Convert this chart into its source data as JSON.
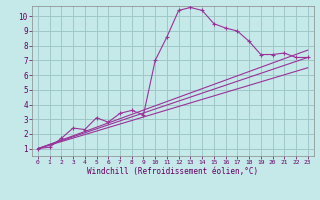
{
  "background_color": "#c5e8e8",
  "grid_color": "#a0c8c8",
  "line_color": "#993399",
  "xlabel": "Windchill (Refroidissement éolien,°C)",
  "ylim": [
    0.5,
    10.7
  ],
  "xlim": [
    -0.5,
    23.5
  ],
  "yticks": [
    1,
    2,
    3,
    4,
    5,
    6,
    7,
    8,
    9,
    10
  ],
  "xticks": [
    0,
    1,
    2,
    3,
    4,
    5,
    6,
    7,
    8,
    9,
    10,
    11,
    12,
    13,
    14,
    15,
    16,
    17,
    18,
    19,
    20,
    21,
    22,
    23
  ],
  "line1_x": [
    0,
    1,
    2,
    3,
    4,
    5,
    6,
    7,
    8,
    9,
    10,
    11,
    12,
    13,
    14,
    15,
    16,
    17,
    18,
    19,
    20,
    21,
    22,
    23
  ],
  "line1_y": [
    1.0,
    1.1,
    1.7,
    2.4,
    2.3,
    3.1,
    2.8,
    3.4,
    3.6,
    3.3,
    7.0,
    8.6,
    10.4,
    10.6,
    10.4,
    9.5,
    9.2,
    9.0,
    8.3,
    7.4,
    7.4,
    7.5,
    7.2,
    7.2
  ],
  "line2_x": [
    0,
    23
  ],
  "line2_y": [
    1.0,
    7.2
  ],
  "line3_x": [
    0,
    23
  ],
  "line3_y": [
    1.0,
    6.5
  ],
  "line4_x": [
    0,
    23
  ],
  "line4_y": [
    1.0,
    7.7
  ]
}
